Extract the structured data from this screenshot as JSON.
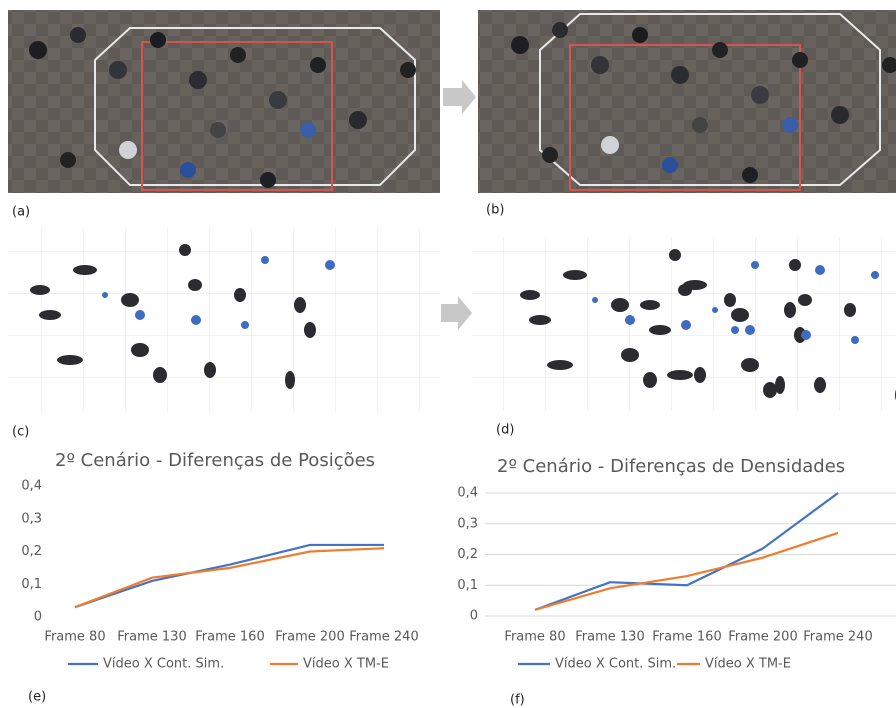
{
  "panel_labels": [
    "(a)",
    "(b)",
    "(c)",
    "(d)",
    "(e)",
    "(f)"
  ],
  "chart_data": [
    {
      "type": "line",
      "title": "2º Cenário - Diferenças de Posições",
      "categories": [
        "Frame 80",
        "Frame 130",
        "Frame 160",
        "Frame 200",
        "Frame 240"
      ],
      "series": [
        {
          "name": "Vídeo X Cont. Sim.",
          "color": "#4472c4",
          "values": [
            0.03,
            0.11,
            0.16,
            0.22,
            0.22
          ]
        },
        {
          "name": "Vídeo X TM-E",
          "color": "#ed7d31",
          "values": [
            0.03,
            0.12,
            0.15,
            0.2,
            0.21
          ]
        }
      ],
      "ylim": [
        0,
        0.4
      ],
      "yticks": [
        0,
        {
          "value": 0.1,
          "label": "0,1"
        },
        {
          "value": 0.2,
          "label": "0,2"
        },
        {
          "value": 0.3,
          "label": "0,3"
        },
        {
          "value": 0.4,
          "label": "0,4"
        }
      ],
      "grid": false,
      "legend": "bottom"
    },
    {
      "type": "line",
      "title": "2º Cenário - Diferenças de Densidades",
      "categories": [
        "Frame 80",
        "Frame 130",
        "Frame 160",
        "Frame 200",
        "Frame 240"
      ],
      "series": [
        {
          "name": "Vídeo X Cont. Sim.",
          "color": "#4472c4",
          "values": [
            0.02,
            0.11,
            0.1,
            0.22,
            0.4
          ]
        },
        {
          "name": "Vídeo X TM-E",
          "color": "#ed7d31",
          "values": [
            0.02,
            0.09,
            0.13,
            0.19,
            0.27
          ]
        }
      ],
      "ylim": [
        0,
        0.4
      ],
      "yticks": [
        0,
        {
          "value": 0.1,
          "label": "0,1"
        },
        {
          "value": 0.2,
          "label": "0,2"
        },
        {
          "value": 0.3,
          "label": "0,3"
        },
        {
          "value": 0.4,
          "label": "0,4"
        }
      ],
      "grid": true,
      "legend": "bottom"
    }
  ]
}
